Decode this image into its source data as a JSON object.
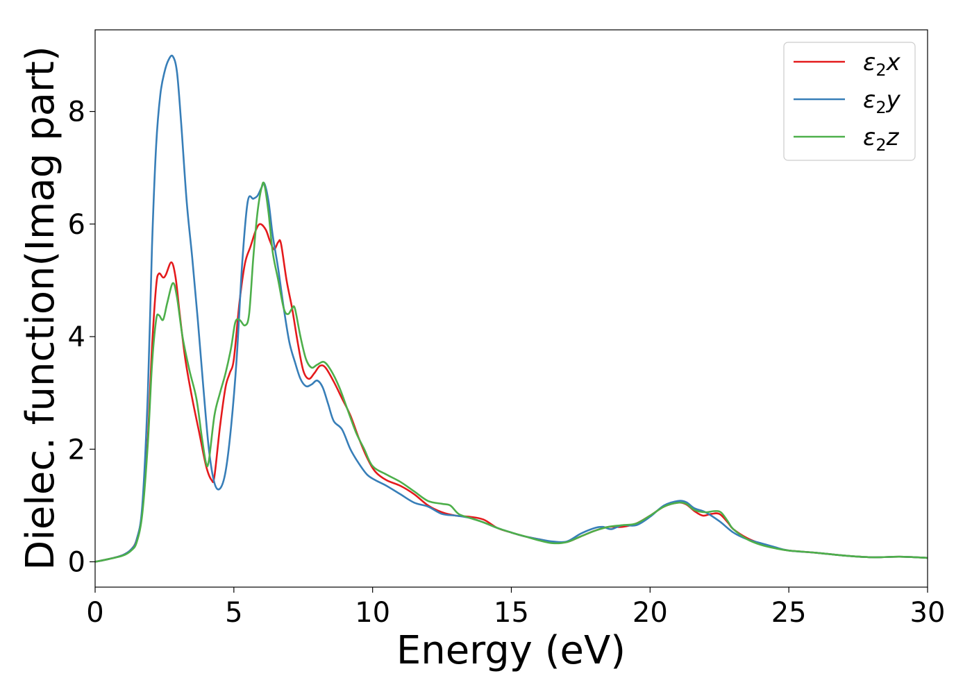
{
  "chart_data": {
    "type": "line",
    "title": "",
    "xlabel": "Energy (eV)",
    "ylabel": "Dielec. function(Imag part)",
    "xlim": [
      0,
      30
    ],
    "ylim": [
      -0.45,
      9.45
    ],
    "xticks": [
      0,
      5,
      10,
      15,
      20,
      25,
      30
    ],
    "yticks": [
      0,
      2,
      4,
      6,
      8
    ],
    "xtick_labels": [
      "0",
      "5",
      "10",
      "15",
      "20",
      "25",
      "30"
    ],
    "ytick_labels": [
      "0",
      "2",
      "4",
      "6",
      "8"
    ],
    "grid": false,
    "legend_position": "top-right",
    "series": [
      {
        "name": "ε2x",
        "legend_symbol": "ε",
        "legend_sub": "2",
        "legend_var": "x",
        "color": "#e41a1c",
        "points": [
          [
            0,
            0.0
          ],
          [
            0.5,
            0.05
          ],
          [
            1.0,
            0.12
          ],
          [
            1.3,
            0.22
          ],
          [
            1.5,
            0.4
          ],
          [
            1.7,
            0.9
          ],
          [
            1.9,
            2.2
          ],
          [
            2.05,
            3.8
          ],
          [
            2.2,
            4.9
          ],
          [
            2.3,
            5.12
          ],
          [
            2.45,
            5.05
          ],
          [
            2.55,
            5.1
          ],
          [
            2.75,
            5.32
          ],
          [
            2.9,
            5.05
          ],
          [
            3.05,
            4.4
          ],
          [
            3.25,
            3.6
          ],
          [
            3.5,
            2.9
          ],
          [
            3.75,
            2.3
          ],
          [
            4.0,
            1.7
          ],
          [
            4.2,
            1.45
          ],
          [
            4.3,
            1.52
          ],
          [
            4.5,
            2.4
          ],
          [
            4.7,
            3.1
          ],
          [
            4.85,
            3.35
          ],
          [
            5.0,
            3.6
          ],
          [
            5.2,
            4.6
          ],
          [
            5.4,
            5.3
          ],
          [
            5.6,
            5.6
          ],
          [
            5.8,
            5.9
          ],
          [
            5.95,
            6.0
          ],
          [
            6.15,
            5.9
          ],
          [
            6.3,
            5.7
          ],
          [
            6.45,
            5.55
          ],
          [
            6.6,
            5.68
          ],
          [
            6.7,
            5.65
          ],
          [
            6.9,
            5.0
          ],
          [
            7.1,
            4.5
          ],
          [
            7.3,
            3.9
          ],
          [
            7.5,
            3.4
          ],
          [
            7.7,
            3.25
          ],
          [
            7.9,
            3.35
          ],
          [
            8.1,
            3.48
          ],
          [
            8.3,
            3.45
          ],
          [
            8.6,
            3.2
          ],
          [
            8.9,
            2.9
          ],
          [
            9.2,
            2.6
          ],
          [
            9.5,
            2.2
          ],
          [
            9.8,
            1.85
          ],
          [
            10.1,
            1.6
          ],
          [
            10.5,
            1.45
          ],
          [
            11.0,
            1.35
          ],
          [
            11.5,
            1.2
          ],
          [
            12.0,
            1.0
          ],
          [
            12.5,
            0.88
          ],
          [
            13.0,
            0.82
          ],
          [
            13.5,
            0.8
          ],
          [
            14.0,
            0.75
          ],
          [
            14.5,
            0.6
          ],
          [
            15.0,
            0.52
          ],
          [
            15.5,
            0.45
          ],
          [
            16.0,
            0.4
          ],
          [
            16.5,
            0.35
          ],
          [
            17.0,
            0.35
          ],
          [
            17.5,
            0.45
          ],
          [
            18.0,
            0.55
          ],
          [
            18.5,
            0.62
          ],
          [
            19.0,
            0.62
          ],
          [
            19.5,
            0.68
          ],
          [
            20.0,
            0.82
          ],
          [
            20.5,
            0.98
          ],
          [
            21.0,
            1.05
          ],
          [
            21.3,
            1.02
          ],
          [
            21.6,
            0.9
          ],
          [
            21.9,
            0.82
          ],
          [
            22.2,
            0.85
          ],
          [
            22.5,
            0.85
          ],
          [
            22.8,
            0.7
          ],
          [
            23.0,
            0.58
          ],
          [
            23.5,
            0.42
          ],
          [
            24.0,
            0.32
          ],
          [
            24.5,
            0.25
          ],
          [
            25.0,
            0.2
          ],
          [
            26.0,
            0.16
          ],
          [
            27.0,
            0.11
          ],
          [
            28.0,
            0.08
          ],
          [
            29.0,
            0.09
          ],
          [
            30.0,
            0.07
          ]
        ]
      },
      {
        "name": "ε2y",
        "legend_symbol": "ε",
        "legend_sub": "2",
        "legend_var": "y",
        "color": "#377eb8",
        "points": [
          [
            0,
            0.0
          ],
          [
            0.5,
            0.05
          ],
          [
            1.0,
            0.12
          ],
          [
            1.3,
            0.22
          ],
          [
            1.5,
            0.4
          ],
          [
            1.7,
            1.0
          ],
          [
            1.9,
            3.0
          ],
          [
            2.05,
            5.6
          ],
          [
            2.2,
            7.4
          ],
          [
            2.35,
            8.3
          ],
          [
            2.5,
            8.7
          ],
          [
            2.65,
            8.92
          ],
          [
            2.8,
            8.98
          ],
          [
            2.95,
            8.7
          ],
          [
            3.1,
            7.8
          ],
          [
            3.3,
            6.4
          ],
          [
            3.5,
            5.4
          ],
          [
            3.7,
            4.3
          ],
          [
            3.9,
            3.1
          ],
          [
            4.1,
            2.0
          ],
          [
            4.3,
            1.4
          ],
          [
            4.5,
            1.3
          ],
          [
            4.7,
            1.6
          ],
          [
            4.9,
            2.4
          ],
          [
            5.1,
            3.6
          ],
          [
            5.3,
            5.3
          ],
          [
            5.5,
            6.4
          ],
          [
            5.7,
            6.45
          ],
          [
            5.85,
            6.5
          ],
          [
            6.0,
            6.65
          ],
          [
            6.1,
            6.72
          ],
          [
            6.25,
            6.4
          ],
          [
            6.4,
            5.8
          ],
          [
            6.6,
            5.2
          ],
          [
            6.8,
            4.5
          ],
          [
            7.0,
            3.9
          ],
          [
            7.2,
            3.55
          ],
          [
            7.4,
            3.25
          ],
          [
            7.6,
            3.12
          ],
          [
            7.8,
            3.15
          ],
          [
            8.0,
            3.22
          ],
          [
            8.2,
            3.1
          ],
          [
            8.4,
            2.8
          ],
          [
            8.6,
            2.5
          ],
          [
            8.9,
            2.35
          ],
          [
            9.2,
            2.0
          ],
          [
            9.5,
            1.75
          ],
          [
            9.8,
            1.55
          ],
          [
            10.1,
            1.45
          ],
          [
            10.5,
            1.35
          ],
          [
            11.0,
            1.2
          ],
          [
            11.5,
            1.05
          ],
          [
            12.0,
            0.98
          ],
          [
            12.5,
            0.85
          ],
          [
            13.0,
            0.82
          ],
          [
            13.5,
            0.78
          ],
          [
            14.0,
            0.7
          ],
          [
            14.5,
            0.6
          ],
          [
            15.0,
            0.52
          ],
          [
            15.5,
            0.45
          ],
          [
            16.0,
            0.4
          ],
          [
            16.5,
            0.36
          ],
          [
            17.0,
            0.36
          ],
          [
            17.5,
            0.5
          ],
          [
            18.0,
            0.6
          ],
          [
            18.3,
            0.62
          ],
          [
            18.6,
            0.58
          ],
          [
            19.0,
            0.65
          ],
          [
            19.5,
            0.65
          ],
          [
            20.0,
            0.8
          ],
          [
            20.5,
            1.0
          ],
          [
            21.0,
            1.08
          ],
          [
            21.3,
            1.06
          ],
          [
            21.6,
            0.95
          ],
          [
            22.0,
            0.88
          ],
          [
            22.5,
            0.72
          ],
          [
            23.0,
            0.52
          ],
          [
            23.5,
            0.4
          ],
          [
            24.0,
            0.33
          ],
          [
            24.5,
            0.26
          ],
          [
            25.0,
            0.2
          ],
          [
            26.0,
            0.16
          ],
          [
            27.0,
            0.11
          ],
          [
            28.0,
            0.08
          ],
          [
            29.0,
            0.09
          ],
          [
            30.0,
            0.07
          ]
        ]
      },
      {
        "name": "ε2z",
        "legend_symbol": "ε",
        "legend_sub": "2",
        "legend_var": "z",
        "color": "#4daf4a",
        "points": [
          [
            0,
            0.0
          ],
          [
            0.5,
            0.05
          ],
          [
            1.0,
            0.11
          ],
          [
            1.3,
            0.2
          ],
          [
            1.5,
            0.35
          ],
          [
            1.7,
            0.85
          ],
          [
            1.9,
            2.1
          ],
          [
            2.05,
            3.5
          ],
          [
            2.2,
            4.3
          ],
          [
            2.3,
            4.38
          ],
          [
            2.45,
            4.3
          ],
          [
            2.6,
            4.6
          ],
          [
            2.8,
            4.95
          ],
          [
            2.95,
            4.7
          ],
          [
            3.15,
            4.0
          ],
          [
            3.4,
            3.4
          ],
          [
            3.65,
            2.9
          ],
          [
            3.85,
            2.2
          ],
          [
            4.0,
            1.75
          ],
          [
            4.1,
            1.8
          ],
          [
            4.3,
            2.6
          ],
          [
            4.5,
            3.0
          ],
          [
            4.7,
            3.35
          ],
          [
            4.9,
            3.8
          ],
          [
            5.05,
            4.25
          ],
          [
            5.2,
            4.3
          ],
          [
            5.4,
            4.2
          ],
          [
            5.55,
            4.4
          ],
          [
            5.7,
            5.4
          ],
          [
            5.85,
            6.2
          ],
          [
            6.0,
            6.65
          ],
          [
            6.1,
            6.7
          ],
          [
            6.25,
            6.2
          ],
          [
            6.4,
            5.5
          ],
          [
            6.6,
            5.0
          ],
          [
            6.8,
            4.5
          ],
          [
            6.95,
            4.4
          ],
          [
            7.1,
            4.5
          ],
          [
            7.2,
            4.5
          ],
          [
            7.4,
            4.0
          ],
          [
            7.6,
            3.6
          ],
          [
            7.8,
            3.45
          ],
          [
            8.0,
            3.5
          ],
          [
            8.25,
            3.55
          ],
          [
            8.5,
            3.4
          ],
          [
            8.8,
            3.1
          ],
          [
            9.1,
            2.7
          ],
          [
            9.4,
            2.3
          ],
          [
            9.7,
            2.0
          ],
          [
            10.0,
            1.7
          ],
          [
            10.5,
            1.55
          ],
          [
            11.0,
            1.42
          ],
          [
            11.5,
            1.25
          ],
          [
            12.0,
            1.08
          ],
          [
            12.5,
            1.03
          ],
          [
            12.8,
            1.0
          ],
          [
            13.1,
            0.85
          ],
          [
            13.5,
            0.78
          ],
          [
            14.0,
            0.7
          ],
          [
            14.5,
            0.6
          ],
          [
            15.0,
            0.52
          ],
          [
            15.5,
            0.45
          ],
          [
            16.0,
            0.38
          ],
          [
            16.5,
            0.33
          ],
          [
            17.0,
            0.35
          ],
          [
            17.5,
            0.45
          ],
          [
            18.0,
            0.55
          ],
          [
            18.5,
            0.62
          ],
          [
            19.0,
            0.65
          ],
          [
            19.5,
            0.68
          ],
          [
            20.0,
            0.82
          ],
          [
            20.5,
            0.98
          ],
          [
            21.0,
            1.05
          ],
          [
            21.3,
            1.03
          ],
          [
            21.6,
            0.92
          ],
          [
            22.0,
            0.88
          ],
          [
            22.3,
            0.9
          ],
          [
            22.55,
            0.88
          ],
          [
            22.8,
            0.72
          ],
          [
            23.0,
            0.58
          ],
          [
            23.5,
            0.4
          ],
          [
            24.0,
            0.3
          ],
          [
            24.5,
            0.24
          ],
          [
            25.0,
            0.2
          ],
          [
            26.0,
            0.16
          ],
          [
            27.0,
            0.11
          ],
          [
            28.0,
            0.08
          ],
          [
            29.0,
            0.09
          ],
          [
            30.0,
            0.07
          ]
        ]
      }
    ]
  }
}
